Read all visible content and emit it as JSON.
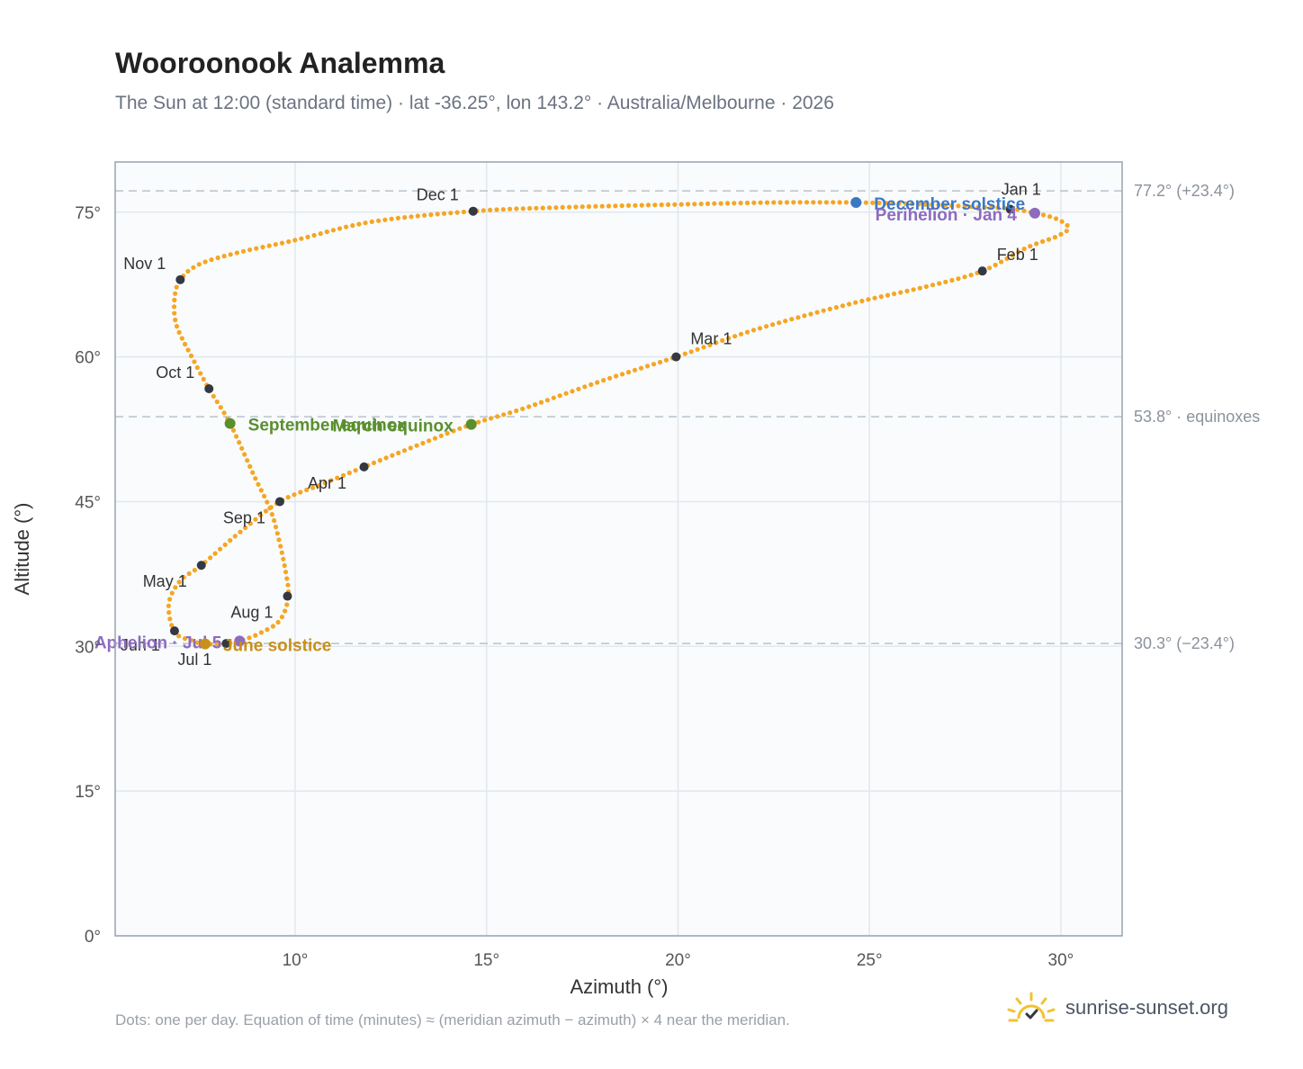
{
  "title": "Wooroonook Analemma",
  "subtitle": "The Sun at 12:00 (standard time) · lat -36.25°, lon 143.2° · Australia/Melbourne · 2026",
  "footnote": "Dots: one per day. Equation of time (minutes) ≈ (meridian azimuth − azimuth) × 4 near the meridian.",
  "brand": "sunrise-sunset.org",
  "colors": {
    "curve": "#f5a623",
    "month_point": "#333842",
    "december_solstice": "#3b78c3",
    "june_solstice": "#c8901a",
    "equinox": "#5a8f2e",
    "perihelion_aphelion": "#8e6bbf",
    "plot_bg": "#f9fbfd",
    "grid": "#e3e8ee",
    "reference_line": "#b8c2cc"
  },
  "chart_data": {
    "type": "scatter",
    "xlabel": "Azimuth (°)",
    "ylabel": "Altitude (°)",
    "xlim": [
      5.3,
      31.6
    ],
    "ylim": [
      0,
      80.2
    ],
    "xticks": [
      10,
      15,
      20,
      25,
      30
    ],
    "yticks": [
      0,
      15,
      30,
      45,
      60,
      75
    ],
    "xtick_labels": [
      "10°",
      "15°",
      "20°",
      "25°",
      "30°"
    ],
    "ytick_labels": [
      "0°",
      "15°",
      "30°",
      "45°",
      "60°",
      "75°"
    ],
    "grid": true,
    "reference_lines": [
      {
        "y": 77.2,
        "label": "77.2° (+23.4°)"
      },
      {
        "y": 53.8,
        "label": "53.8° · equinoxes"
      },
      {
        "y": 30.3,
        "label": "30.3° (−23.4°)"
      }
    ],
    "analemma_points": [
      [
        28.7,
        75.4
      ],
      [
        29.32,
        74.9
      ],
      [
        29.86,
        74.35
      ],
      [
        30.2,
        73.4
      ],
      [
        29.9,
        72.5
      ],
      [
        29.1,
        71.3
      ],
      [
        27.95,
        68.9
      ],
      [
        26.5,
        67.3
      ],
      [
        24.5,
        65.5
      ],
      [
        22.0,
        62.8
      ],
      [
        19.95,
        60.0
      ],
      [
        18.0,
        57.5
      ],
      [
        16.0,
        54.7
      ],
      [
        14.6,
        53.0
      ],
      [
        13.3,
        51.0
      ],
      [
        11.8,
        48.6
      ],
      [
        10.7,
        46.8
      ],
      [
        9.6,
        45.0
      ],
      [
        8.55,
        41.8
      ],
      [
        7.55,
        38.4
      ],
      [
        7.0,
        36.8
      ],
      [
        6.7,
        34.4
      ],
      [
        6.85,
        31.5
      ],
      [
        7.3,
        30.6
      ],
      [
        7.65,
        30.25
      ],
      [
        8.2,
        30.3
      ],
      [
        8.55,
        30.55
      ],
      [
        9.1,
        31.4
      ],
      [
        9.6,
        32.7
      ],
      [
        9.82,
        35.1
      ],
      [
        9.75,
        37.8
      ],
      [
        9.55,
        41.5
      ],
      [
        9.35,
        44.2
      ],
      [
        8.95,
        47.5
      ],
      [
        8.3,
        53.1
      ],
      [
        7.75,
        56.7
      ],
      [
        7.3,
        60.0
      ],
      [
        6.9,
        63.3
      ],
      [
        6.85,
        66.0
      ],
      [
        7.0,
        68.0
      ],
      [
        7.5,
        69.6
      ],
      [
        8.5,
        70.8
      ],
      [
        10.0,
        72.1
      ],
      [
        12.0,
        74.0
      ],
      [
        14.65,
        75.1
      ],
      [
        17.0,
        75.5
      ],
      [
        20.0,
        75.8
      ],
      [
        22.5,
        76.0
      ],
      [
        24.65,
        76.0
      ],
      [
        26.5,
        75.8
      ],
      [
        28.0,
        75.5
      ],
      [
        28.7,
        75.4
      ]
    ],
    "month_markers": [
      {
        "label": "Jan 1",
        "x": 28.68,
        "y": 75.3,
        "anchor": "middle",
        "dx": 12,
        "dy": -16
      },
      {
        "label": "Feb 1",
        "x": 27.95,
        "y": 68.9,
        "anchor": "start",
        "dx": 16,
        "dy": -12
      },
      {
        "label": "Mar 1",
        "x": 19.95,
        "y": 60.0,
        "anchor": "start",
        "dx": 16,
        "dy": -14
      },
      {
        "label": "Apr 1",
        "x": 11.8,
        "y": 48.6,
        "anchor": "middle",
        "dx": -41,
        "dy": 24
      },
      {
        "label": "May 1",
        "x": 7.55,
        "y": 38.4,
        "anchor": "end",
        "dx": -16,
        "dy": 24
      },
      {
        "label": "Jun 1",
        "x": 6.85,
        "y": 31.6,
        "anchor": "end",
        "dx": -16,
        "dy": 22
      },
      {
        "label": "Jul 1",
        "x": 8.2,
        "y": 30.3,
        "anchor": "end",
        "dx": -16,
        "dy": 24
      },
      {
        "label": "Aug 1",
        "x": 9.8,
        "y": 35.2,
        "anchor": "end",
        "dx": -16,
        "dy": 24
      },
      {
        "label": "Sep 1",
        "x": 9.6,
        "y": 45.0,
        "anchor": "end",
        "dx": -16,
        "dy": 24
      },
      {
        "label": "Oct 1",
        "x": 7.75,
        "y": 56.7,
        "anchor": "end",
        "dx": -16,
        "dy": -12
      },
      {
        "label": "Nov 1",
        "x": 7.0,
        "y": 68.0,
        "anchor": "end",
        "dx": -16,
        "dy": -12
      },
      {
        "label": "Dec 1",
        "x": 14.65,
        "y": 75.1,
        "anchor": "end",
        "dx": -16,
        "dy": -12
      }
    ],
    "events": [
      {
        "label": "December solstice",
        "x": 24.65,
        "y": 76.0,
        "color": "#3b78c3",
        "anchor": "start",
        "dx": 20,
        "dy": 8
      },
      {
        "label": "Perihelion · Jan 4",
        "x": 29.32,
        "y": 74.9,
        "color": "#8e6bbf",
        "anchor": "end",
        "dx": -20,
        "dy": 8
      },
      {
        "label": "March equinox",
        "x": 14.6,
        "y": 53.0,
        "color": "#5a8f2e",
        "anchor": "end",
        "dx": -20,
        "dy": 8
      },
      {
        "label": "September equinox",
        "x": 8.3,
        "y": 53.1,
        "color": "#5a8f2e",
        "anchor": "start",
        "dx": 20,
        "dy": 8
      },
      {
        "label": "Aphelion · Jul 5",
        "x": 8.55,
        "y": 30.55,
        "color": "#8e6bbf",
        "anchor": "end",
        "dx": -20,
        "dy": 8
      },
      {
        "label": "June solstice",
        "x": 7.65,
        "y": 30.25,
        "color": "#c8901a",
        "anchor": "start",
        "dx": 20,
        "dy": 8
      }
    ]
  }
}
